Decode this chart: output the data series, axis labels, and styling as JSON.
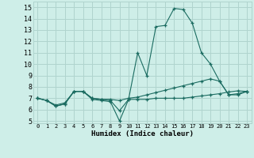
{
  "xlabel": "Humidex (Indice chaleur)",
  "bg_color": "#ceeee8",
  "grid_color": "#b0d4ce",
  "line_color": "#1a6b60",
  "xlim": [
    -0.5,
    23.5
  ],
  "ylim": [
    4.8,
    15.5
  ],
  "xticks": [
    0,
    1,
    2,
    3,
    4,
    5,
    6,
    7,
    8,
    9,
    10,
    11,
    12,
    13,
    14,
    15,
    16,
    17,
    18,
    19,
    20,
    21,
    22,
    23
  ],
  "yticks": [
    5,
    6,
    7,
    8,
    9,
    10,
    11,
    12,
    13,
    14,
    15
  ],
  "series": [
    [
      7.0,
      6.8,
      6.3,
      6.5,
      7.6,
      7.6,
      6.9,
      6.8,
      6.7,
      5.0,
      6.9,
      6.9,
      6.9,
      7.0,
      7.0,
      7.0,
      7.0,
      7.1,
      7.2,
      7.3,
      7.4,
      7.55,
      7.65,
      7.6
    ],
    [
      7.0,
      6.8,
      6.3,
      6.5,
      7.6,
      7.6,
      7.0,
      6.9,
      6.8,
      5.9,
      6.9,
      11.0,
      9.0,
      13.3,
      13.4,
      14.9,
      14.8,
      13.6,
      11.0,
      10.0,
      8.5,
      7.3,
      7.3,
      7.6
    ],
    [
      7.0,
      6.8,
      6.4,
      6.6,
      7.6,
      7.6,
      7.0,
      6.9,
      6.9,
      6.8,
      7.0,
      7.1,
      7.3,
      7.5,
      7.7,
      7.9,
      8.1,
      8.3,
      8.5,
      8.7,
      8.5,
      7.3,
      7.4,
      7.6
    ]
  ]
}
